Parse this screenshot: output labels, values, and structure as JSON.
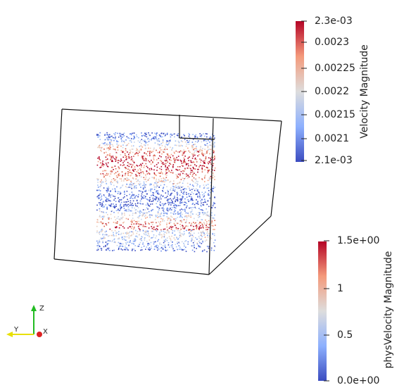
{
  "colorbars": [
    {
      "title": "Velocity Magnitude",
      "ticks": [
        "2.3e-03",
        "0.0023",
        "0.00225",
        "0.0022",
        "0.00215",
        "0.0021",
        "2.1e-03"
      ]
    },
    {
      "title": "physVelocity Magnitude",
      "ticks": [
        "1.5e+00",
        "1",
        "0.5",
        "0.0e+00"
      ]
    }
  ],
  "axes": {
    "z": "Z",
    "y": "Y",
    "x": "X"
  }
}
